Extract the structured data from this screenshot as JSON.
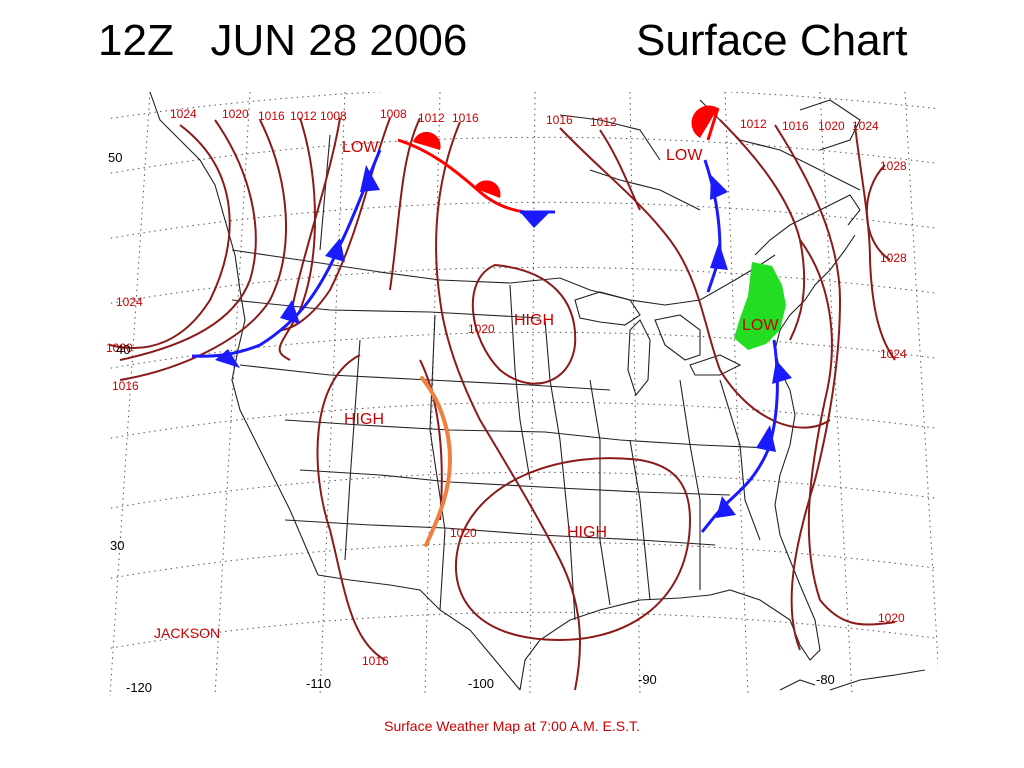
{
  "title": {
    "left": "12Z   JUN 28 2006",
    "right": "Surface Chart"
  },
  "caption": "Surface Weather Map at 7:00 A.M. E.S.T.",
  "station": "JACKSON",
  "lat_labels": [
    "50",
    "40",
    "30"
  ],
  "lon_labels": [
    "-120",
    "-110",
    "-100",
    "-90",
    "-80"
  ],
  "isobar_labels": {
    "top": [
      "1024",
      "1020",
      "1016",
      "1012",
      "1008",
      "1008",
      "1012",
      "1016",
      "1016",
      "1012",
      "1012",
      "1016",
      "1020",
      "1024"
    ],
    "west": [
      "1024",
      "1020",
      "1016"
    ],
    "east": [
      "1028",
      "1028",
      "1024",
      "1020"
    ],
    "interior": [
      "1020",
      "1020",
      "1016"
    ]
  },
  "pressure_centers": {
    "low_nw": "LOW",
    "low_ne": "LOW",
    "low_east": "LOW",
    "high_north": "HIGH",
    "high_west": "HIGH",
    "high_south": "HIGH"
  },
  "colors": {
    "isobar": "#8b1a1a",
    "label": "#cc0000",
    "cold_front": "#1a1aff",
    "warm_front": "#ff0000",
    "trough": "#f08040",
    "precip": "#22dd22",
    "boundary": "#222222"
  }
}
